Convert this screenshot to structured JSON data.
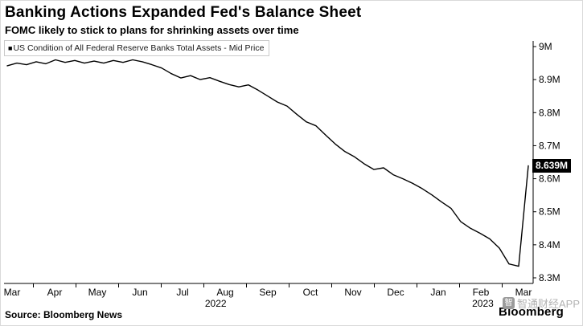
{
  "header": {
    "title": "Banking Actions Expanded Fed's Balance Sheet",
    "subtitle": "FOMC likely to stick to plans for shrinking assets over time"
  },
  "legend": {
    "marker": "■",
    "label": "US Condition of All Federal Reserve Banks Total Assets - Mid Price"
  },
  "last_value_label": "8.639M",
  "footer": {
    "source": "Source: Bloomberg News",
    "brand": "Bloomberg"
  },
  "watermark": {
    "logo_glyph": "智",
    "text": "智通财经APP"
  },
  "chart_data": {
    "type": "line",
    "title": "Banking Actions Expanded Fed's Balance Sheet",
    "subtitle": "FOMC likely to stick to plans for shrinking assets over time",
    "series_name": "US Condition of All Federal Reserve Banks Total Assets - Mid Price",
    "line_color": "#000000",
    "ylim": [
      8.3,
      9.0
    ],
    "y_ticks": [
      9.0,
      8.9,
      8.8,
      8.7,
      8.6,
      8.5,
      8.4,
      8.3
    ],
    "y_tick_labels": [
      "9M",
      "8.9M",
      "8.8M",
      "8.7M",
      "8.6M",
      "8.5M",
      "8.4M",
      "8.3M"
    ],
    "x_tick_labels": [
      "Mar",
      "Apr",
      "May",
      "Jun",
      "Jul",
      "Aug",
      "Sep",
      "Oct",
      "Nov",
      "Dec",
      "Jan",
      "Feb",
      "Mar"
    ],
    "year_labels": [
      {
        "text": "2022",
        "position": 0.4
      },
      {
        "text": "2023",
        "position": 0.905
      }
    ],
    "last_value": 8.639,
    "values": [
      8.942,
      8.95,
      8.945,
      8.954,
      8.948,
      8.96,
      8.952,
      8.958,
      8.95,
      8.956,
      8.95,
      8.958,
      8.952,
      8.96,
      8.954,
      8.945,
      8.935,
      8.918,
      8.905,
      8.912,
      8.9,
      8.906,
      8.895,
      8.885,
      8.878,
      8.884,
      8.868,
      8.85,
      8.832,
      8.82,
      8.795,
      8.772,
      8.76,
      8.732,
      8.705,
      8.682,
      8.666,
      8.645,
      8.628,
      8.633,
      8.612,
      8.6,
      8.586,
      8.57,
      8.551,
      8.53,
      8.51,
      8.47,
      8.45,
      8.435,
      8.418,
      8.39,
      8.342,
      8.335,
      8.639
    ]
  }
}
